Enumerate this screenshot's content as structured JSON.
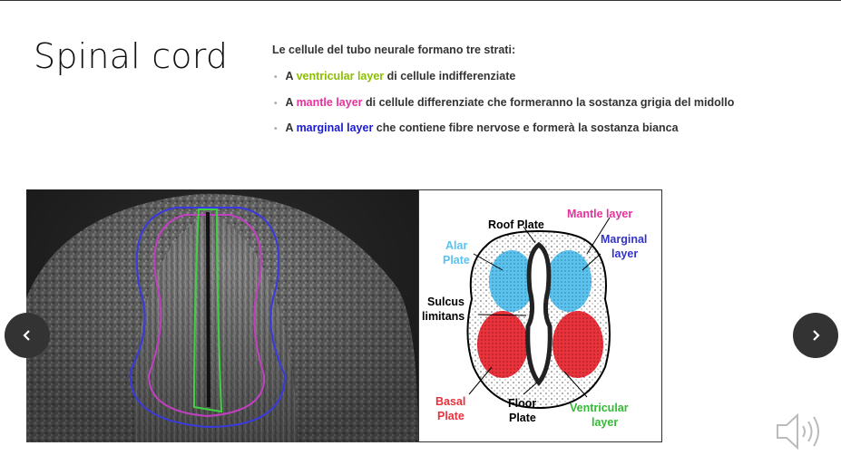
{
  "slide": {
    "title": "Spinal cord",
    "intro": "Le cellule del tubo neurale formano tre strati:",
    "bullets": [
      {
        "prefix": "A ",
        "highlight": "ventricular layer",
        "rest": " di cellule indifferenziate",
        "color": "#8cbf00"
      },
      {
        "prefix": "A ",
        "highlight": "mantle layer",
        "rest": " di cellule differenziate che formeranno la sostanza grigia del midollo",
        "color": "#e6329b"
      },
      {
        "prefix": "A ",
        "highlight": "marginal layer",
        "rest": " che contiene fibre nervose e formerà la sostanza bianca",
        "color": "#1a1ad0"
      }
    ]
  },
  "diagram": {
    "roof_plate": "Roof Plate",
    "mantle_layer": "Mantle layer",
    "marginal_1": "Marginal",
    "marginal_2": "layer",
    "alar_1": "Alar",
    "alar_2": "Plate",
    "sulcus_1": "Sulcus",
    "sulcus_2": "limitans",
    "basal_1": "Basal",
    "basal_2": "Plate",
    "floor_1": "Floor",
    "floor_2": "Plate",
    "ventricular_1": "Ventricular",
    "ventricular_2": "layer",
    "colors": {
      "alar": "#5bc3ee",
      "basal": "#e8323c",
      "mantle_label": "#e6329b",
      "marginal_label": "#3333cc",
      "ventricular_label": "#33bb33",
      "alar_label": "#5bc3ee",
      "basal_label": "#e8323c"
    }
  },
  "icons": {
    "prev": "chevron-left-icon",
    "next": "chevron-right-icon",
    "audio": "speaker-icon"
  }
}
